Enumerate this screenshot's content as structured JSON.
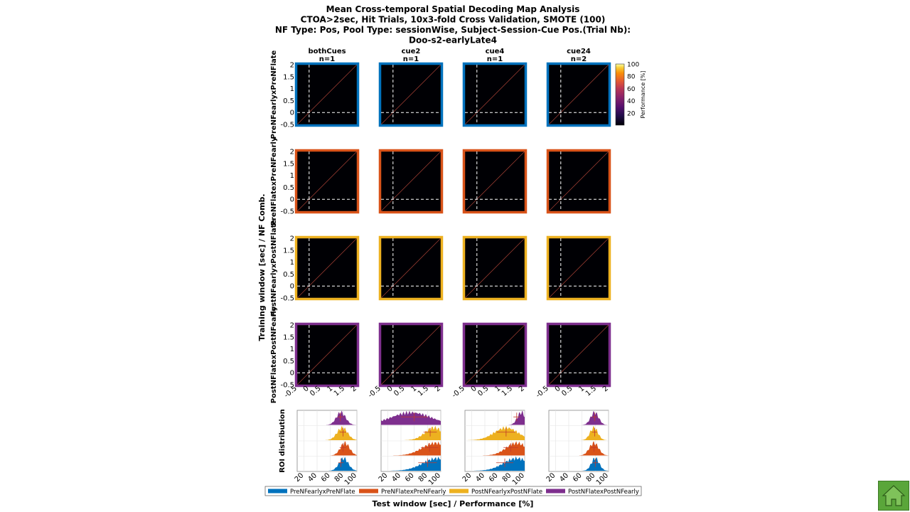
{
  "chart_data": {
    "type": "heatmap",
    "title_lines": [
      "Mean Cross-temporal Spatial Decoding Map Analysis",
      "CTOA>2sec, Hit Trials, 10x3-fold Cross Validation, SMOTE (100)",
      "NF Type: Pos, Pool Type: sessionWise, Subject-Session-Cue Pos.(Trial Nb):",
      "Doo-s2-earlyLate4"
    ],
    "columns": [
      {
        "label": "bothCues",
        "n": "n=1"
      },
      {
        "label": "cue2",
        "n": "n=1"
      },
      {
        "label": "cue4",
        "n": "n=1"
      },
      {
        "label": "cue24",
        "n": "n=2"
      }
    ],
    "rows": [
      {
        "label": "PreNFearlyxPreNFlate",
        "color": "#0072bd"
      },
      {
        "label": "PreNFlatexPreNFearly",
        "color": "#d95319"
      },
      {
        "label": "PostNFearlyxPostNFlate",
        "color": "#edb120"
      },
      {
        "label": "PostNFlatexPostNFearly",
        "color": "#7e2f8e"
      }
    ],
    "axis_ticks": [
      "-0.5",
      "0",
      "0.5",
      "1",
      "1.5",
      "2"
    ],
    "axis_range": [
      -0.5,
      2
    ],
    "ylabel": "Training window [sec] / NF Comb.",
    "xlabel": "Test window [sec] / Performance [%]",
    "colorbar": {
      "label": "Performance [%]",
      "ticks": [
        "20",
        "40",
        "60",
        "80",
        "100"
      ],
      "range": [
        0,
        100
      ],
      "colormap": "inferno"
    },
    "roi": {
      "ylabel": "ROI distribution",
      "ticks": [
        "20",
        "40",
        "60",
        "80",
        "100"
      ],
      "range": [
        10,
        100
      ],
      "distributions": [
        [
          {
            "peak": 80,
            "spread": 7,
            "mean": 76,
            "sd": 4
          },
          {
            "peak": 82,
            "spread": 7,
            "mean": 79,
            "sd": 5
          },
          {
            "peak": 78,
            "spread": 8,
            "mean": 79,
            "sd": 5
          },
          {
            "peak": 76,
            "spread": 7,
            "mean": 75,
            "sd": 4
          }
        ],
        [
          {
            "peak": 95,
            "spread": 22,
            "mean": 80,
            "sd": 14
          },
          {
            "peak": 92,
            "spread": 20,
            "mean": 83,
            "sd": 13
          },
          {
            "peak": 90,
            "spread": 14,
            "mean": 84,
            "sd": 10
          },
          {
            "peak": 55,
            "spread": 30,
            "mean": 60,
            "sd": 20
          }
        ],
        [
          {
            "peak": 88,
            "spread": 20,
            "mean": 70,
            "sd": 13
          },
          {
            "peak": 88,
            "spread": 16,
            "mean": 79,
            "sd": 11
          },
          {
            "peak": 72,
            "spread": 18,
            "mean": 72,
            "sd": 14
          },
          {
            "peak": 95,
            "spread": 6,
            "mean": 88,
            "sd": 5
          }
        ],
        [
          {
            "peak": 80,
            "spread": 6,
            "mean": 80,
            "sd": 4
          },
          {
            "peak": 78,
            "spread": 7,
            "mean": 78,
            "sd": 5
          },
          {
            "peak": 78,
            "spread": 6,
            "mean": 79,
            "sd": 4
          },
          {
            "peak": 79,
            "spread": 6,
            "mean": 79,
            "sd": 4
          }
        ]
      ]
    },
    "legend": {
      "placement": "bottom",
      "entries": [
        "PreNFearlyxPreNFlate",
        "PreNFlatexPreNFearly",
        "PostNFearlyxPostNFlate",
        "PostNFlatexPostNFearly"
      ]
    }
  },
  "ui": {
    "home_button_icon": "home-icon",
    "home_button_color": "#5aa63a"
  }
}
